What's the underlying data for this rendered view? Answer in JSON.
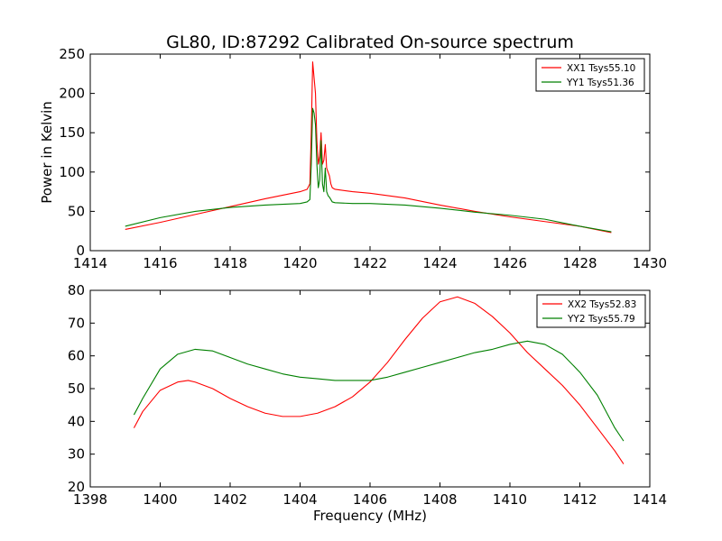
{
  "figure": {
    "title": "GL80, ID:87292 Calibrated On-source spectrum",
    "ylabel": "Power in Kelvin",
    "xlabel": "Frequency (MHz)",
    "colors": {
      "red": "#ff0000",
      "green": "#008000"
    }
  },
  "chart_data": [
    {
      "type": "line",
      "title": "GL80, ID:87292 Calibrated On-source spectrum",
      "xlabel": "",
      "ylabel": "Power in Kelvin",
      "xlim": [
        1414,
        1430
      ],
      "ylim": [
        0,
        250
      ],
      "xticks": [
        1414,
        1416,
        1418,
        1420,
        1422,
        1424,
        1426,
        1428,
        1430
      ],
      "yticks": [
        0,
        50,
        100,
        150,
        200,
        250
      ],
      "grid": false,
      "legend": "top-right",
      "series": [
        {
          "name": "XX1 Tsys55.10",
          "color": "#ff0000",
          "x": [
            1415.0,
            1416.0,
            1417.0,
            1418.0,
            1419.0,
            1420.0,
            1420.2,
            1420.28,
            1420.32,
            1420.36,
            1420.4,
            1420.44,
            1420.48,
            1420.52,
            1420.56,
            1420.6,
            1420.64,
            1420.68,
            1420.72,
            1420.76,
            1420.8,
            1420.84,
            1420.88,
            1420.92,
            1421.0,
            1421.5,
            1422.0,
            1423.0,
            1424.0,
            1425.0,
            1426.0,
            1427.0,
            1428.0,
            1428.9
          ],
          "y": [
            27,
            36,
            46,
            56,
            66,
            75,
            78,
            85,
            150,
            240,
            220,
            200,
            140,
            110,
            120,
            150,
            110,
            115,
            135,
            105,
            100,
            95,
            85,
            80,
            78,
            75,
            73,
            67,
            58,
            50,
            43,
            37,
            31,
            23
          ]
        },
        {
          "name": "YY1 Tsys51.36",
          "color": "#008000",
          "x": [
            1415.0,
            1416.0,
            1417.0,
            1418.0,
            1419.0,
            1420.0,
            1420.2,
            1420.28,
            1420.32,
            1420.36,
            1420.4,
            1420.44,
            1420.48,
            1420.52,
            1420.56,
            1420.6,
            1420.64,
            1420.68,
            1420.72,
            1420.76,
            1420.8,
            1420.84,
            1420.88,
            1420.92,
            1421.0,
            1421.5,
            1422.0,
            1423.0,
            1424.0,
            1425.0,
            1426.0,
            1427.0,
            1428.0,
            1428.9
          ],
          "y": [
            31,
            42,
            50,
            55,
            58,
            60,
            62,
            65,
            110,
            181,
            175,
            160,
            110,
            80,
            90,
            140,
            85,
            75,
            105,
            75,
            70,
            68,
            65,
            62,
            61,
            60,
            60,
            58,
            54,
            49,
            45,
            40,
            31,
            24
          ]
        }
      ]
    },
    {
      "type": "line",
      "title": "",
      "xlabel": "Frequency (MHz)",
      "ylabel": "",
      "xlim": [
        1398,
        1414
      ],
      "ylim": [
        20,
        80
      ],
      "xticks": [
        1398,
        1400,
        1402,
        1404,
        1406,
        1408,
        1410,
        1412,
        1414
      ],
      "yticks": [
        20,
        30,
        40,
        50,
        60,
        70,
        80
      ],
      "grid": false,
      "legend": "top-right",
      "series": [
        {
          "name": "XX2 Tsys52.83",
          "color": "#ff0000",
          "x": [
            1399.25,
            1399.5,
            1400.0,
            1400.5,
            1400.8,
            1401.0,
            1401.5,
            1402.0,
            1402.5,
            1403.0,
            1403.5,
            1404.0,
            1404.5,
            1405.0,
            1405.5,
            1406.0,
            1406.5,
            1407.0,
            1407.5,
            1408.0,
            1408.5,
            1409.0,
            1409.5,
            1410.0,
            1410.5,
            1411.0,
            1411.5,
            1412.0,
            1412.5,
            1413.0,
            1413.25
          ],
          "y": [
            38,
            43,
            49.5,
            52,
            52.5,
            52,
            50,
            47,
            44.5,
            42.5,
            41.5,
            41.5,
            42.5,
            44.5,
            47.5,
            52,
            58,
            65,
            71.5,
            76.5,
            78,
            76,
            72,
            67,
            61,
            56,
            51,
            45,
            38,
            31,
            27
          ]
        },
        {
          "name": "YY2 Tsys55.79",
          "color": "#008000",
          "x": [
            1399.25,
            1399.5,
            1400.0,
            1400.5,
            1401.0,
            1401.5,
            1402.0,
            1402.5,
            1403.0,
            1403.5,
            1404.0,
            1404.5,
            1405.0,
            1405.5,
            1406.0,
            1406.5,
            1407.0,
            1407.5,
            1408.0,
            1408.5,
            1409.0,
            1409.5,
            1410.0,
            1410.5,
            1411.0,
            1411.5,
            1412.0,
            1412.5,
            1413.0,
            1413.25
          ],
          "y": [
            42,
            47,
            56,
            60.5,
            62,
            61.5,
            59.5,
            57.5,
            56,
            54.5,
            53.5,
            53,
            52.5,
            52.5,
            52.5,
            53.5,
            55,
            56.5,
            58,
            59.5,
            61,
            62,
            63.5,
            64.5,
            63.5,
            60.5,
            55,
            48,
            38,
            34
          ]
        }
      ]
    }
  ]
}
